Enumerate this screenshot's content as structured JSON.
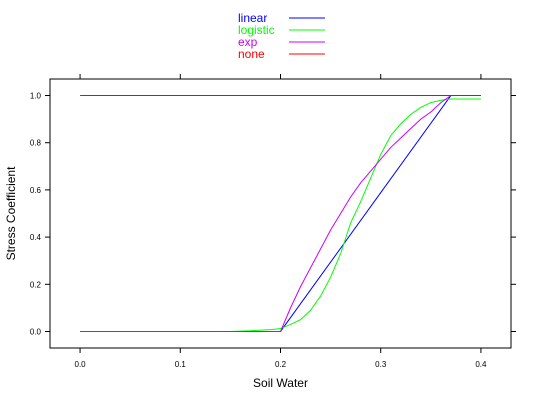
{
  "chart_data": {
    "type": "line",
    "title": "",
    "xlabel": "Soil Water",
    "ylabel": "Stress Coefficient",
    "xlim": [
      -0.03,
      0.43
    ],
    "ylim": [
      -0.07,
      1.07
    ],
    "xticks": [
      "0.0",
      "0.1",
      "0.2",
      "0.3",
      "0.4"
    ],
    "yticks": [
      "0.0",
      "0.2",
      "0.4",
      "0.6",
      "0.8",
      "1.0"
    ],
    "grid": false,
    "legend_position": "top-center",
    "series": [
      {
        "name": "linear",
        "color": "#0000ff",
        "x": [
          0.0,
          0.2,
          0.37,
          0.4
        ],
        "y": [
          0.0,
          0.0,
          1.0,
          1.0
        ]
      },
      {
        "name": "logistic",
        "color": "#00ff00",
        "x": [
          0.0,
          0.15,
          0.17,
          0.19,
          0.2,
          0.21,
          0.22,
          0.23,
          0.24,
          0.25,
          0.26,
          0.27,
          0.28,
          0.29,
          0.3,
          0.31,
          0.32,
          0.33,
          0.34,
          0.35,
          0.36,
          0.37,
          0.38,
          0.39,
          0.4
        ],
        "y": [
          0.0,
          0.0,
          0.003,
          0.008,
          0.012,
          0.03,
          0.05,
          0.09,
          0.15,
          0.23,
          0.33,
          0.46,
          0.55,
          0.65,
          0.75,
          0.83,
          0.88,
          0.92,
          0.95,
          0.97,
          0.98,
          0.985,
          0.985,
          0.985,
          0.985
        ]
      },
      {
        "name": "exp",
        "color": "#cc00ff",
        "x": [
          0.0,
          0.2,
          0.21,
          0.22,
          0.23,
          0.24,
          0.25,
          0.26,
          0.27,
          0.28,
          0.29,
          0.3,
          0.31,
          0.32,
          0.33,
          0.34,
          0.35,
          0.36,
          0.37,
          0.38,
          0.39,
          0.4
        ],
        "y": [
          0.0,
          0.0,
          0.1,
          0.19,
          0.27,
          0.35,
          0.43,
          0.5,
          0.57,
          0.63,
          0.68,
          0.73,
          0.78,
          0.82,
          0.86,
          0.9,
          0.93,
          0.97,
          1.0,
          1.0,
          1.0,
          1.0
        ]
      },
      {
        "name": "none",
        "color": "#ff0000",
        "x": [
          0.0,
          0.4
        ],
        "y": [
          1.0,
          1.0
        ]
      }
    ]
  }
}
